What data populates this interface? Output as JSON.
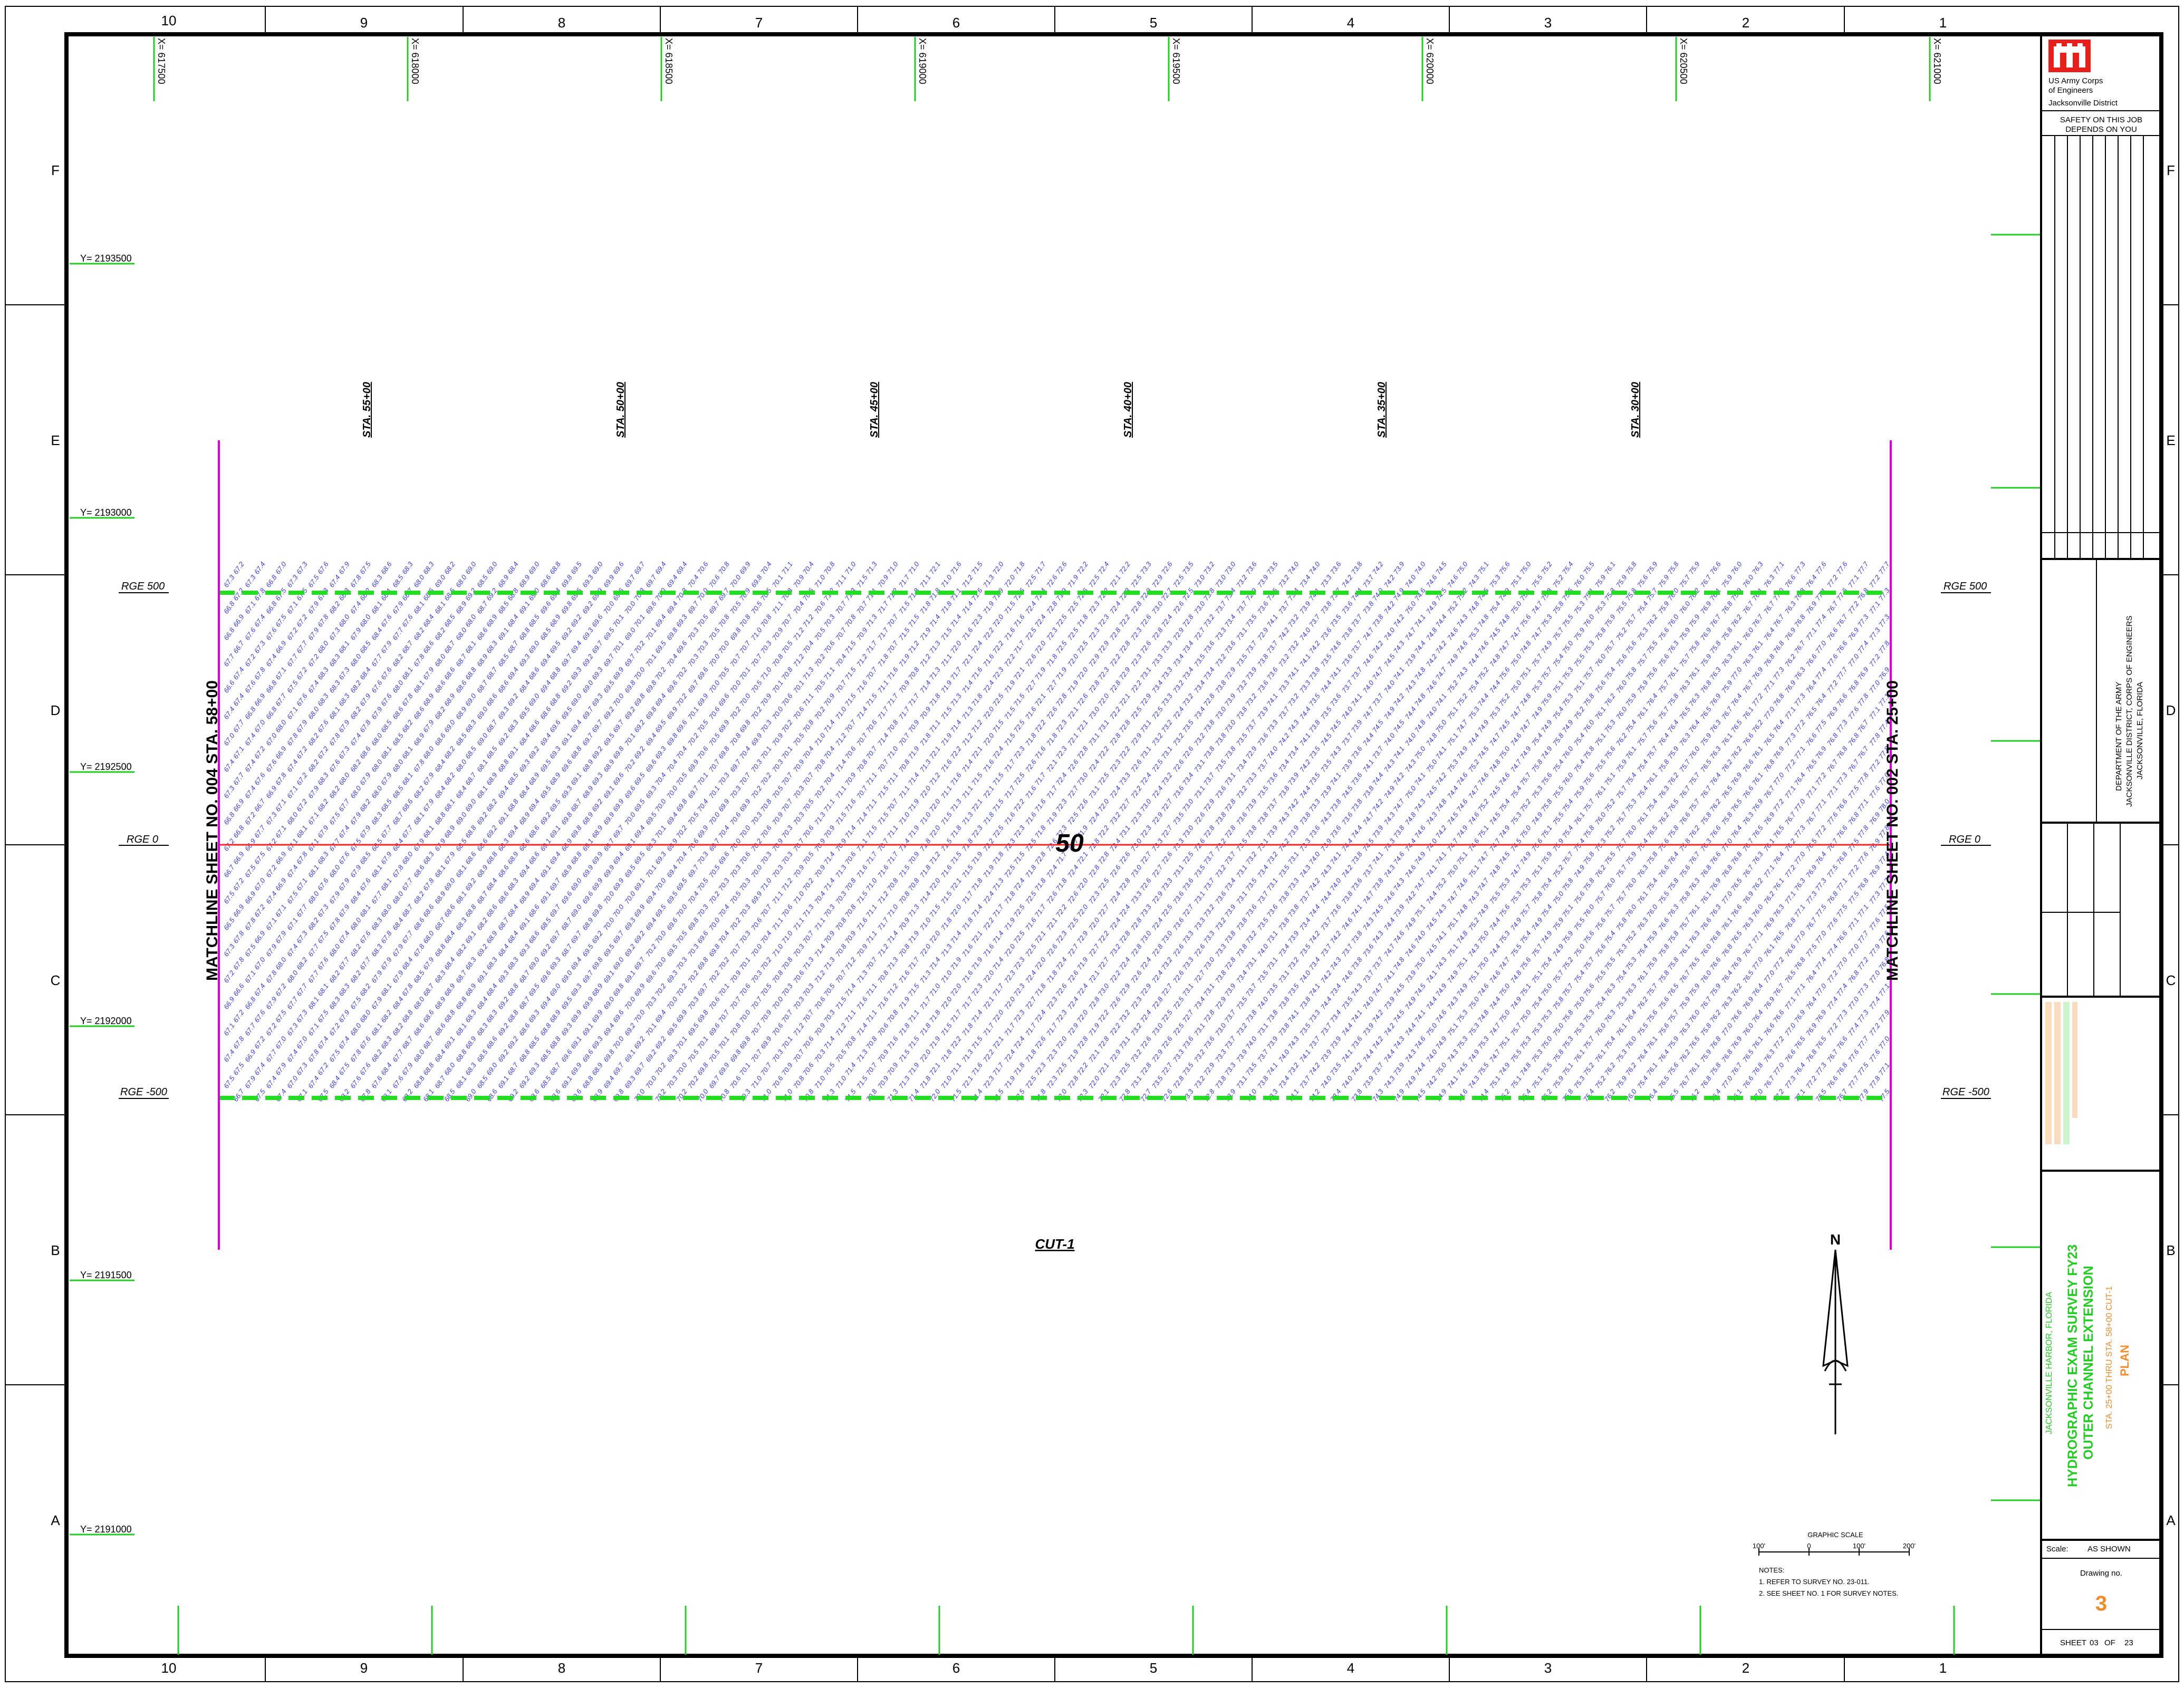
{
  "zones": {
    "columns": [
      "10",
      "9",
      "8",
      "7",
      "6",
      "5",
      "4",
      "3",
      "2",
      "1"
    ],
    "rows": [
      "F",
      "E",
      "D",
      "C",
      "B",
      "A"
    ]
  },
  "grid": {
    "x_labels": [
      "X= 617500",
      "X= 618000",
      "X= 618500",
      "X= 619000",
      "X= 619500",
      "X= 620000",
      "X= 620500",
      "X= 621000"
    ],
    "y_labels": [
      "Y= 2193500",
      "Y= 2193000",
      "Y= 2192500",
      "Y= 2192000",
      "Y= 2191500",
      "Y= 2191000"
    ]
  },
  "stations": [
    "STA. 55+00",
    "STA. 50+00",
    "STA. 45+00",
    "STA. 40+00",
    "STA. 35+00",
    "STA. 30+00"
  ],
  "ranges": {
    "top": "RGE 500",
    "center": "RGE 0",
    "bottom": "RGE -500"
  },
  "matchlines": {
    "left": "MATCHLINE SHEET NO. 004 STA. 58+00",
    "right": "MATCHLINE SHEET NO. 002 STA. 25+00"
  },
  "channel_depth": "50",
  "cut_label": "CUT-1",
  "north_arrow": "N",
  "soundings": {
    "range_min": 66.5,
    "range_max": 78.0,
    "sample": [
      "67.3",
      "68.1",
      "69.4",
      "70.2",
      "71.8",
      "72.5",
      "73.6",
      "74.4",
      "75.2",
      "76.7",
      "77.1",
      "77.9"
    ]
  },
  "graphic_scale": {
    "title": "GRAPHIC SCALE",
    "ticks": [
      "100'",
      "0",
      "100'",
      "200'"
    ]
  },
  "notes": {
    "heading": "NOTES:",
    "items": [
      "1. REFER TO SURVEY NO. 23-011.",
      "2. SEE SHEET NO. 1 FOR SURVEY NOTES."
    ]
  },
  "title_block": {
    "agency_line1": "US Army Corps",
    "agency_line2": "of Engineers",
    "agency_line3": "Jacksonville District",
    "safety_line1": "SAFETY ON THIS JOB",
    "safety_line2": "DEPENDS ON YOU",
    "dept_line1": "DEPARTMENT OF THE ARMY",
    "dept_line2": "JACKSONVILLE DISTRICT, CORPS OF ENGINEERS",
    "dept_line3": "JACKSONVILLE, FLORIDA",
    "project_location": "JACKSONVILLE HARBOR, FLORIDA",
    "title_line1": "HYDROGRAPHIC EXAM SURVEY FY23",
    "title_line2": "OUTER CHANNEL EXTENSION",
    "title_line3": "STA. 25+00 THRU STA. 58+00 CUT-1",
    "title_line4": "PLAN",
    "scale_label": "Scale:",
    "scale_value": "AS SHOWN",
    "drawing_no_label": "Drawing no.",
    "drawing_no": "3",
    "sheet_label": "SHEET",
    "sheet_no": "03",
    "sheet_of": "OF",
    "sheet_total": "23"
  },
  "colors": {
    "border": "#000000",
    "grid_tick": "#22cc22",
    "channel_toe": "#22dd22",
    "centerline": "#ff2020",
    "matchline": "#dd00dd",
    "soundings": "#3a3ae0",
    "logo_red": "#e8201c",
    "title_green": "#22cc22",
    "title_orange": "#f08c2a"
  }
}
